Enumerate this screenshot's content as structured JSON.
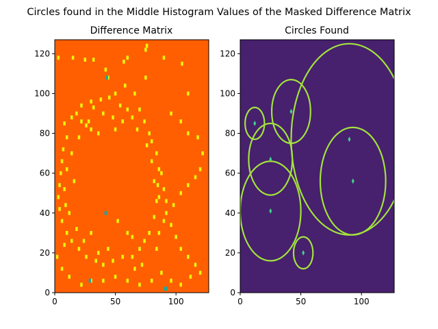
{
  "suptitle": "Circles found in the Middle Histogram Values of the Masked Difference Matrix",
  "colors": {
    "diff_background": "#ff5f00",
    "diff_speck": "#e8f50c",
    "diff_outlier": "#19a8a0",
    "circles_background": "#47206e",
    "circle_stroke": "#a2e33d",
    "center_marker": "#3fd18a"
  },
  "chart_data": [
    {
      "type": "heatmap",
      "title": "Difference Matrix",
      "xlabel": "",
      "ylabel": "",
      "xlim": [
        0,
        127
      ],
      "ylim": [
        0,
        127
      ],
      "xticks": [
        0,
        50,
        100
      ],
      "yticks": [
        0,
        20,
        40,
        60,
        80,
        100,
        120
      ],
      "colormap": "jet",
      "description_values": "binary mask: orange background, yellow specks forming a rough ring around the center",
      "specks": [
        [
          3,
          118
        ],
        [
          15,
          118
        ],
        [
          25,
          117
        ],
        [
          32,
          117
        ],
        [
          57,
          116
        ],
        [
          60,
          118
        ],
        [
          75,
          122
        ],
        [
          76,
          124
        ],
        [
          42,
          112
        ],
        [
          44,
          108
        ],
        [
          75,
          108
        ],
        [
          90,
          118
        ],
        [
          105,
          115
        ],
        [
          110,
          100
        ],
        [
          66,
          100
        ],
        [
          58,
          104
        ],
        [
          50,
          100
        ],
        [
          45,
          98
        ],
        [
          38,
          97
        ],
        [
          30,
          96
        ],
        [
          22,
          94
        ],
        [
          18,
          90
        ],
        [
          14,
          88
        ],
        [
          8,
          85
        ],
        [
          32,
          93
        ],
        [
          40,
          90
        ],
        [
          48,
          88
        ],
        [
          54,
          94
        ],
        [
          60,
          92
        ],
        [
          64,
          88
        ],
        [
          70,
          92
        ],
        [
          74,
          86
        ],
        [
          78,
          80
        ],
        [
          80,
          76
        ],
        [
          84,
          70
        ],
        [
          86,
          62
        ],
        [
          85,
          54
        ],
        [
          84,
          46
        ],
        [
          82,
          38
        ],
        [
          78,
          30
        ],
        [
          74,
          26
        ],
        [
          70,
          22
        ],
        [
          64,
          18
        ],
        [
          56,
          18
        ],
        [
          48,
          16
        ],
        [
          40,
          14
        ],
        [
          34,
          16
        ],
        [
          26,
          18
        ],
        [
          20,
          22
        ],
        [
          14,
          26
        ],
        [
          10,
          30
        ],
        [
          6,
          36
        ],
        [
          4,
          42
        ],
        [
          3,
          48
        ],
        [
          4,
          54
        ],
        [
          5,
          60
        ],
        [
          6,
          66
        ],
        [
          7,
          72
        ],
        [
          10,
          78
        ],
        [
          22,
          86
        ],
        [
          28,
          86
        ],
        [
          30,
          82
        ],
        [
          96,
          90
        ],
        [
          104,
          86
        ],
        [
          110,
          80
        ],
        [
          118,
          78
        ],
        [
          122,
          70
        ],
        [
          120,
          62
        ],
        [
          116,
          58
        ],
        [
          110,
          54
        ],
        [
          104,
          50
        ],
        [
          98,
          44
        ],
        [
          92,
          40
        ],
        [
          96,
          34
        ],
        [
          100,
          28
        ],
        [
          104,
          22
        ],
        [
          110,
          18
        ],
        [
          116,
          14
        ],
        [
          120,
          10
        ],
        [
          112,
          8
        ],
        [
          104,
          4
        ],
        [
          96,
          6
        ],
        [
          88,
          10
        ],
        [
          80,
          6
        ],
        [
          70,
          4
        ],
        [
          60,
          6
        ],
        [
          50,
          8
        ],
        [
          40,
          6
        ],
        [
          30,
          6
        ],
        [
          22,
          4
        ],
        [
          12,
          8
        ],
        [
          6,
          12
        ],
        [
          2,
          18
        ],
        [
          88,
          60
        ],
        [
          90,
          52
        ],
        [
          92,
          46
        ],
        [
          82,
          56
        ],
        [
          86,
          48
        ],
        [
          8,
          24
        ],
        [
          12,
          40
        ],
        [
          16,
          56
        ],
        [
          64,
          28
        ],
        [
          60,
          30
        ],
        [
          52,
          36
        ],
        [
          18,
          32
        ],
        [
          24,
          26
        ],
        [
          30,
          30
        ],
        [
          36,
          20
        ],
        [
          44,
          22
        ],
        [
          66,
          12
        ],
        [
          72,
          14
        ],
        [
          84,
          22
        ],
        [
          86,
          30
        ],
        [
          90,
          36
        ],
        [
          80,
          66
        ],
        [
          76,
          74
        ],
        [
          68,
          82
        ],
        [
          56,
          86
        ],
        [
          50,
          82
        ],
        [
          36,
          80
        ],
        [
          26,
          84
        ],
        [
          20,
          78
        ],
        [
          14,
          70
        ],
        [
          10,
          62
        ],
        [
          8,
          52
        ],
        [
          9,
          44
        ]
      ],
      "outliers": [
        [
          43,
          108
        ],
        [
          42,
          40
        ],
        [
          29,
          6
        ],
        [
          91,
          2
        ],
        [
          92,
          2
        ]
      ]
    },
    {
      "type": "heatmap",
      "title": "Circles Found",
      "xlabel": "",
      "ylabel": "",
      "xlim": [
        0,
        127
      ],
      "ylim": [
        0,
        127
      ],
      "xticks": [
        0,
        50,
        100
      ],
      "yticks": [
        0,
        20,
        40,
        60,
        80,
        100,
        120
      ],
      "circles": [
        {
          "cx": 90,
          "cy": 77,
          "r": 48
        },
        {
          "cx": 93,
          "cy": 56,
          "r": 27
        },
        {
          "cx": 42,
          "cy": 91,
          "r": 16
        },
        {
          "cx": 25,
          "cy": 67,
          "r": 18
        },
        {
          "cx": 25,
          "cy": 41,
          "r": 25
        },
        {
          "cx": 12,
          "cy": 85,
          "r": 8
        },
        {
          "cx": 52,
          "cy": 20,
          "r": 8
        }
      ]
    }
  ]
}
